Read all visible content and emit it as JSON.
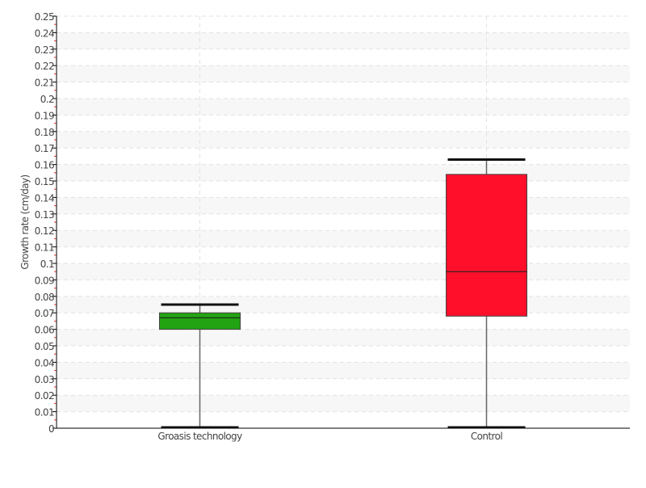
{
  "chart_data": {
    "type": "box",
    "title": "",
    "xlabel": "",
    "ylabel": "Growth rate (cm/day)",
    "ylim": [
      0,
      0.25
    ],
    "ytick_step": 0.01,
    "grid": true,
    "categories": [
      "Groasis technology",
      "Control"
    ],
    "series": [
      {
        "category": "Groasis technology",
        "min": 0,
        "q1": 0.06,
        "median": 0.067,
        "q3": 0.07,
        "max": 0.075,
        "color": "#22a312"
      },
      {
        "category": "Control",
        "min": 0,
        "q1": 0.068,
        "median": 0.095,
        "q3": 0.154,
        "max": 0.163,
        "color": "#ff0f2a"
      }
    ]
  }
}
